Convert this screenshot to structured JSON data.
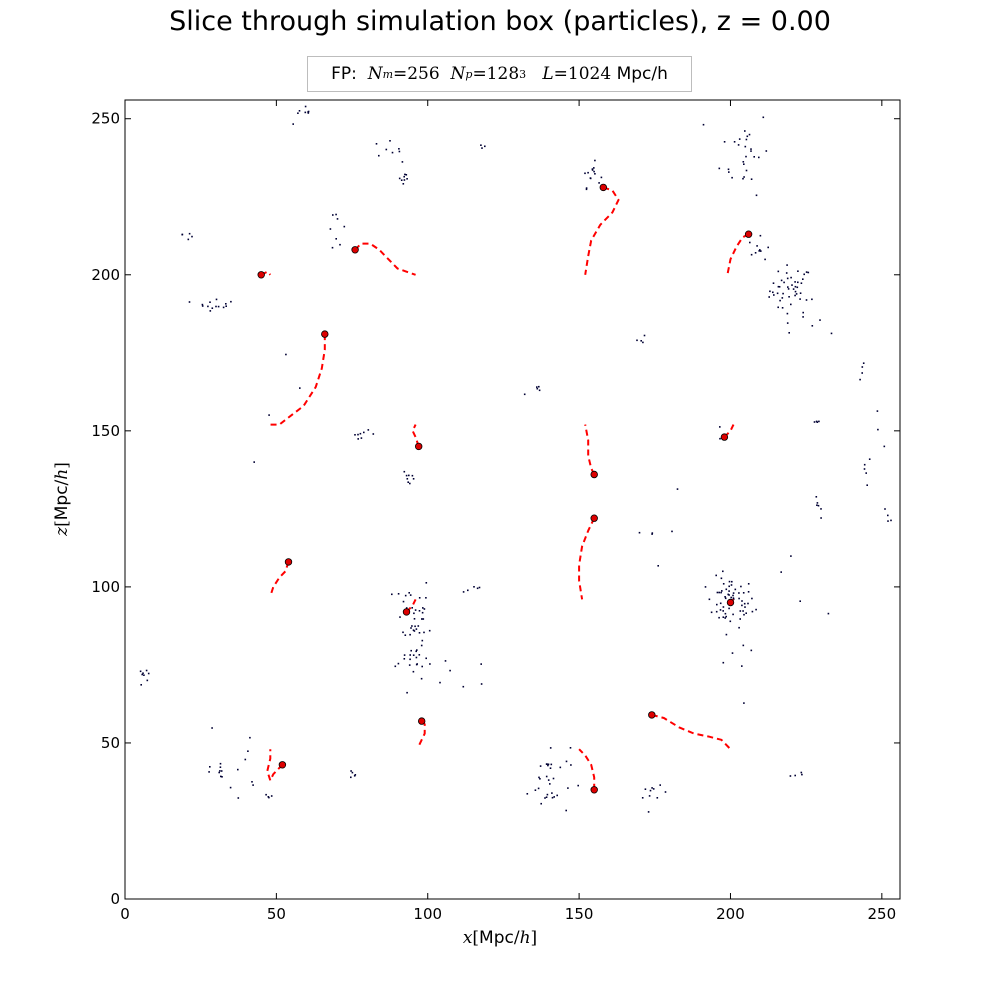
{
  "title": "Slice through simulation box (particles), z = 0.00",
  "legend": {
    "prefix": "FP:",
    "nm_sym": "N",
    "nm_sub": "m",
    "nm_val": "=256",
    "np_sym": "N",
    "np_sub": "p",
    "np_val": "=128",
    "np_exp": "3",
    "l_sym": "L",
    "l_val": "=1024",
    "l_unit": "Mpc/h"
  },
  "xlabel": {
    "var": "x",
    "open": "[",
    "unit": "Mpc",
    "slash": "/",
    "h": "h",
    "close": "]"
  },
  "ylabel": {
    "var": "z",
    "open": "[",
    "unit": "Mpc",
    "slash": "/",
    "h": "h",
    "close": "]"
  },
  "colors": {
    "particle": "#000033",
    "track": "#ff0000",
    "halo": "#dd0000",
    "axes": "#000000"
  },
  "chart_data": {
    "type": "scatter",
    "xlim": [
      0,
      256
    ],
    "ylim": [
      0,
      256
    ],
    "xticks": [
      0,
      50,
      100,
      150,
      200,
      250
    ],
    "yticks": [
      0,
      50,
      100,
      150,
      200,
      250
    ],
    "grid": false,
    "clusters": [
      {
        "cx": 220,
        "cy": 195,
        "sx": 3.5,
        "sy": 4,
        "n": 45
      },
      {
        "cx": 200,
        "cy": 95,
        "sx": 4,
        "sy": 4,
        "n": 60
      },
      {
        "cx": 95,
        "cy": 88,
        "sx": 3,
        "sy": 9,
        "n": 50
      },
      {
        "cx": 205,
        "cy": 240,
        "sx": 4,
        "sy": 7,
        "n": 28
      },
      {
        "cx": 154,
        "cy": 232,
        "sx": 1.5,
        "sy": 2,
        "n": 15
      },
      {
        "cx": 210,
        "cy": 208,
        "sx": 2,
        "sy": 2,
        "n": 10
      },
      {
        "cx": 140,
        "cy": 38,
        "sx": 3.5,
        "sy": 6,
        "n": 32
      },
      {
        "cx": 30,
        "cy": 191,
        "sx": 3,
        "sy": 1.2,
        "n": 14
      },
      {
        "cx": 175,
        "cy": 33,
        "sx": 2,
        "sy": 1.5,
        "n": 10
      },
      {
        "cx": 92,
        "cy": 231,
        "sx": 1.2,
        "sy": 1.5,
        "n": 8
      },
      {
        "cx": 94,
        "cy": 135,
        "sx": 1,
        "sy": 1.5,
        "n": 8
      },
      {
        "cx": 78,
        "cy": 149,
        "sx": 2.5,
        "sy": 0.6,
        "n": 8
      },
      {
        "cx": 70,
        "cy": 215,
        "sx": 1.5,
        "sy": 3,
        "n": 8
      },
      {
        "cx": 229,
        "cy": 125,
        "sx": 1,
        "sy": 2,
        "n": 6
      },
      {
        "cx": 31,
        "cy": 41,
        "sx": 2,
        "sy": 1,
        "n": 8
      },
      {
        "cx": 86,
        "cy": 240,
        "sx": 2.5,
        "sy": 1.5,
        "n": 8
      },
      {
        "cx": 59,
        "cy": 251,
        "sx": 2.5,
        "sy": 1.5,
        "n": 8
      },
      {
        "cx": 137,
        "cy": 163,
        "sx": 2.5,
        "sy": 0.7,
        "n": 5
      },
      {
        "cx": 222,
        "cy": 40,
        "sx": 1.5,
        "sy": 0.5,
        "n": 4
      },
      {
        "cx": 115,
        "cy": 99,
        "sx": 2,
        "sy": 1,
        "n": 5
      },
      {
        "cx": 228,
        "cy": 153,
        "sx": 1,
        "sy": 0.5,
        "n": 4
      },
      {
        "cx": 48,
        "cy": 33,
        "sx": 1,
        "sy": 0.5,
        "n": 4
      },
      {
        "cx": 6,
        "cy": 72,
        "sx": 1.5,
        "sy": 3,
        "n": 8
      },
      {
        "cx": 21,
        "cy": 213,
        "sx": 1,
        "sy": 1.5,
        "n": 5
      },
      {
        "cx": 76,
        "cy": 40,
        "sx": 1.5,
        "sy": 1,
        "n": 5
      },
      {
        "cx": 197,
        "cy": 148,
        "sx": 1.2,
        "sy": 1,
        "n": 4
      },
      {
        "cx": 244,
        "cy": 168,
        "sx": 1,
        "sy": 3,
        "n": 4
      },
      {
        "cx": 245,
        "cy": 137,
        "sx": 1,
        "sy": 3,
        "n": 5
      },
      {
        "cx": 249,
        "cy": 150,
        "sx": 2,
        "sy": 3,
        "n": 3
      },
      {
        "cx": 170,
        "cy": 179,
        "sx": 1,
        "sy": 1,
        "n": 4
      },
      {
        "cx": 252,
        "cy": 122,
        "sx": 1,
        "sy": 2,
        "n": 4
      },
      {
        "cx": 118,
        "cy": 241,
        "sx": 1,
        "sy": 0.5,
        "n": 3
      },
      {
        "cx": 96,
        "cy": 72,
        "sx": 3,
        "sy": 4,
        "n": 8
      },
      {
        "cx": 37,
        "cy": 40,
        "sx": 6,
        "sy": 10,
        "n": 10
      },
      {
        "cx": 200,
        "cy": 72,
        "sx": 3,
        "sy": 6,
        "n": 6
      },
      {
        "cx": 230,
        "cy": 185,
        "sx": 4,
        "sy": 4,
        "n": 6
      },
      {
        "cx": 175,
        "cy": 120,
        "sx": 5,
        "sy": 8,
        "n": 6
      },
      {
        "cx": 110,
        "cy": 60,
        "sx": 8,
        "sy": 12,
        "n": 6
      },
      {
        "cx": 50,
        "cy": 150,
        "sx": 10,
        "sy": 10,
        "n": 4
      },
      {
        "cx": 225,
        "cy": 100,
        "sx": 8,
        "sy": 8,
        "n": 6
      }
    ],
    "tracks": [
      {
        "halo": [
          158,
          228
        ],
        "path": [
          [
            158,
            228
          ],
          [
            161,
            227
          ],
          [
            163,
            224
          ],
          [
            161,
            220
          ],
          [
            157,
            216
          ],
          [
            154,
            211
          ],
          [
            153,
            206
          ],
          [
            152,
            200
          ]
        ]
      },
      {
        "halo": [
          206,
          213
        ],
        "path": [
          [
            206,
            213
          ],
          [
            204,
            212
          ],
          [
            202,
            209
          ],
          [
            200,
            205
          ],
          [
            199,
            200
          ]
        ]
      },
      {
        "halo": [
          76,
          208
        ],
        "path": [
          [
            76,
            208
          ],
          [
            78,
            210
          ],
          [
            81,
            210
          ],
          [
            84,
            208
          ],
          [
            87,
            205
          ],
          [
            90,
            202
          ],
          [
            93,
            201
          ],
          [
            96,
            200
          ]
        ]
      },
      {
        "halo": [
          45,
          200
        ],
        "path": [
          [
            45,
            200
          ],
          [
            47,
            201
          ],
          [
            48,
            200
          ]
        ]
      },
      {
        "halo": [
          66,
          181
        ],
        "path": [
          [
            66,
            181
          ],
          [
            66,
            176
          ],
          [
            65,
            170
          ],
          [
            63,
            164
          ],
          [
            59,
            158
          ],
          [
            55,
            155
          ],
          [
            51,
            152
          ],
          [
            48,
            152
          ]
        ]
      },
      {
        "halo": [
          97,
          145
        ],
        "path": [
          [
            97,
            145
          ],
          [
            96,
            148
          ],
          [
            95,
            150
          ],
          [
            96,
            152
          ]
        ]
      },
      {
        "halo": [
          155,
          136
        ],
        "path": [
          [
            155,
            136
          ],
          [
            154,
            138
          ],
          [
            153,
            142
          ],
          [
            153,
            147
          ],
          [
            152,
            152
          ]
        ]
      },
      {
        "halo": [
          155,
          122
        ],
        "path": [
          [
            155,
            122
          ],
          [
            153,
            118
          ],
          [
            151,
            113
          ],
          [
            150,
            107
          ],
          [
            150,
            102
          ],
          [
            151,
            96
          ]
        ]
      },
      {
        "halo": [
          198,
          148
        ],
        "path": [
          [
            198,
            148
          ],
          [
            200,
            150
          ],
          [
            201,
            152
          ]
        ]
      },
      {
        "halo": [
          200,
          95
        ],
        "path": [
          [
            200,
            95
          ],
          [
            201,
            96
          ]
        ]
      },
      {
        "halo": [
          54,
          108
        ],
        "path": [
          [
            54,
            108
          ],
          [
            53,
            105
          ],
          [
            51,
            103
          ],
          [
            49,
            100
          ],
          [
            48,
            97
          ]
        ]
      },
      {
        "halo": [
          93,
          92
        ],
        "path": [
          [
            93,
            92
          ],
          [
            95,
            94
          ],
          [
            96,
            96
          ]
        ]
      },
      {
        "halo": [
          98,
          57
        ],
        "path": [
          [
            98,
            57
          ],
          [
            99,
            56
          ],
          [
            99,
            53
          ],
          [
            98,
            51
          ],
          [
            97,
            49
          ]
        ]
      },
      {
        "halo": [
          52,
          43
        ],
        "path": [
          [
            52,
            43
          ],
          [
            49,
            40
          ],
          [
            48,
            38
          ],
          [
            47,
            41
          ],
          [
            48,
            45
          ],
          [
            48,
            48
          ]
        ]
      },
      {
        "halo": [
          174,
          59
        ],
        "path": [
          [
            174,
            59
          ],
          [
            178,
            58
          ],
          [
            183,
            55
          ],
          [
            188,
            53
          ],
          [
            193,
            52
          ],
          [
            197,
            51
          ],
          [
            200,
            48
          ]
        ]
      },
      {
        "halo": [
          155,
          35
        ],
        "path": [
          [
            155,
            35
          ],
          [
            155,
            39
          ],
          [
            154,
            43
          ],
          [
            152,
            46
          ],
          [
            150,
            48
          ]
        ]
      }
    ]
  }
}
